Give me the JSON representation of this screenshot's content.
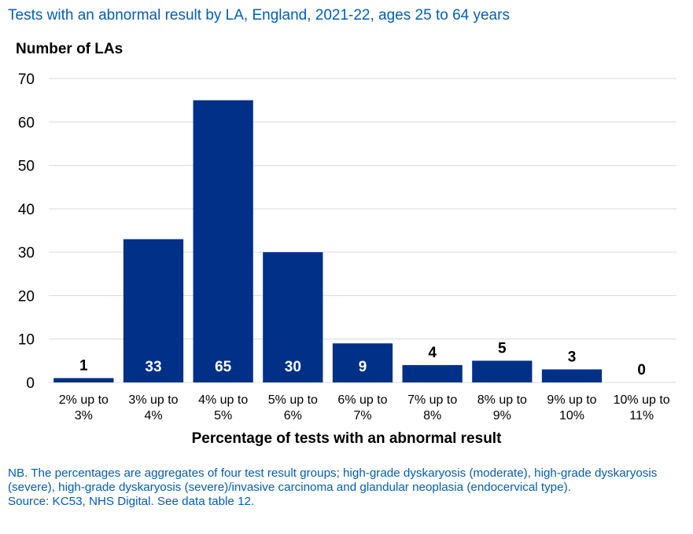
{
  "chart_data": {
    "type": "bar",
    "title": "Tests with an abnormal result by LA, England, 2021-22, ages 25 to 64 years",
    "ylabel": "Number of LAs",
    "xlabel": "Percentage of tests with an abnormal result",
    "categories": [
      [
        "2% up to",
        "3%"
      ],
      [
        "3% up to",
        "4%"
      ],
      [
        "4% up to",
        "5%"
      ],
      [
        "5% up to",
        "6%"
      ],
      [
        "6% up to",
        "7%"
      ],
      [
        "7% up to",
        "8%"
      ],
      [
        "8% up to",
        "9%"
      ],
      [
        "9% up to",
        "10%"
      ],
      [
        "10% up to",
        "11%"
      ]
    ],
    "values": [
      1,
      33,
      65,
      30,
      9,
      4,
      5,
      3,
      0
    ],
    "ylim": [
      0,
      70
    ],
    "yticks": [
      0,
      10,
      20,
      30,
      40,
      50,
      60,
      70
    ],
    "grid": true,
    "bar_color": "#003087",
    "gridline_color": "#d9d9d9"
  },
  "notes": {
    "nb": "NB. The percentages are aggregates of four test result groups; high-grade dyskaryosis (moderate), high-grade dyskaryosis (severe), high-grade dyskaryosis (severe)/invasive carcinoma and glandular neoplasia (endocervical type).",
    "source": "Source: KC53, NHS Digital. See data table 12."
  },
  "colors": {
    "title": "#005EB8",
    "text": "#000000"
  }
}
